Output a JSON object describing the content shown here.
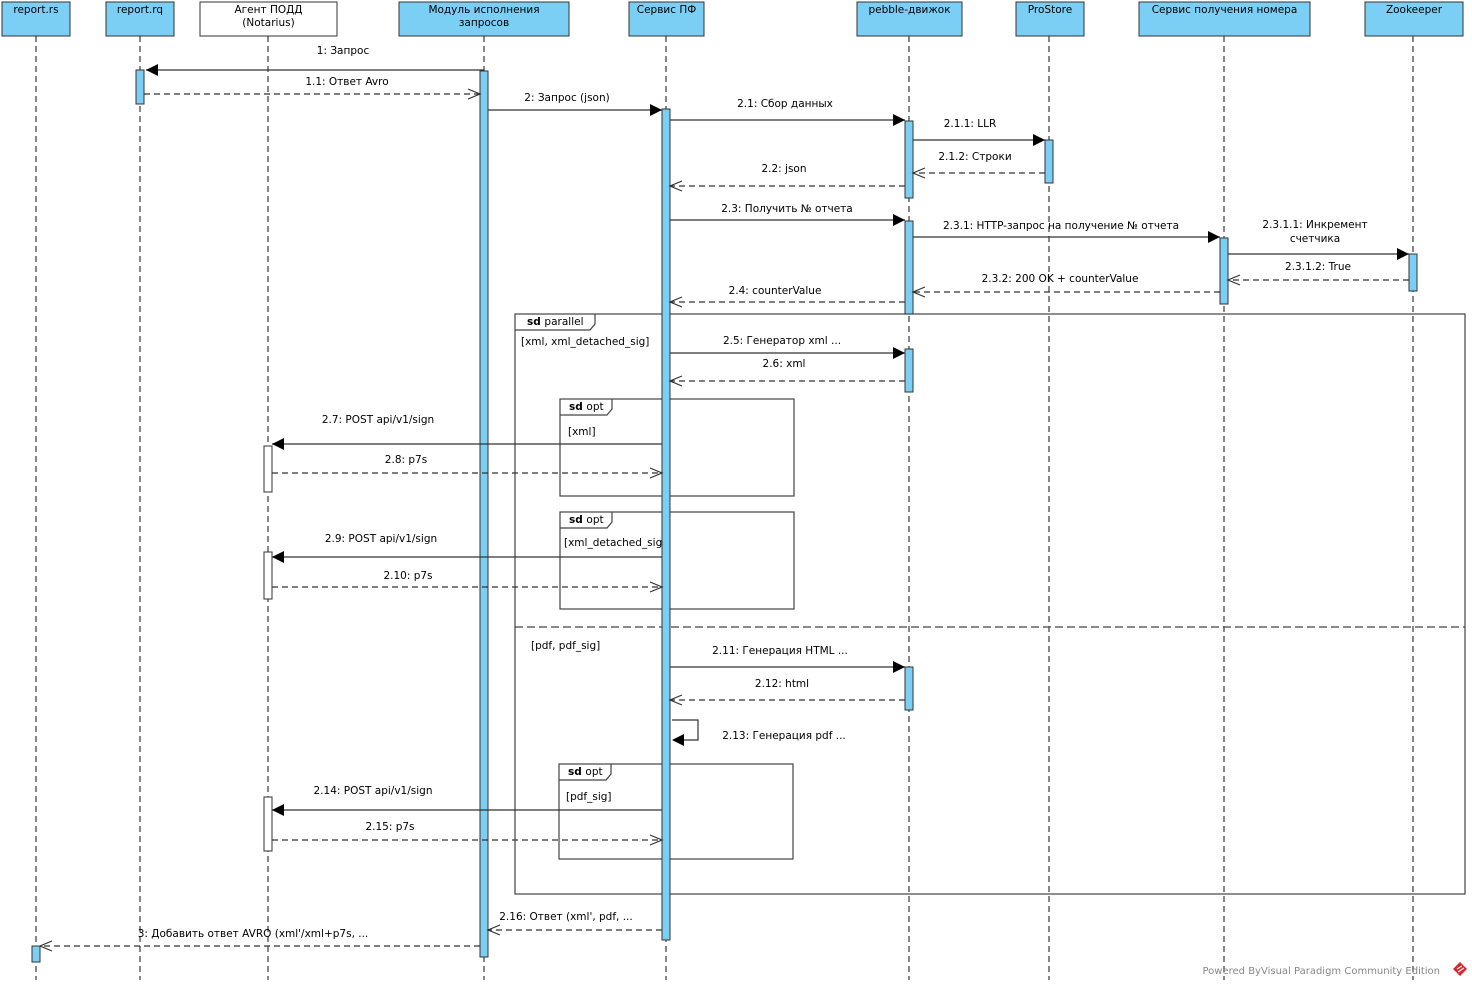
{
  "colors": {
    "participant_fill": "#7ccff4",
    "agent_fill": "#ffffff",
    "activation_fill": "#7ccff4",
    "line": "#333333",
    "watermark": "#888888",
    "logo": "#d9262e"
  },
  "participants": [
    {
      "id": "rs",
      "label": [
        "report.rs"
      ]
    },
    {
      "id": "rq",
      "label": [
        "report.rq"
      ]
    },
    {
      "id": "agent",
      "label": [
        "Агент ПОДД",
        "(Notarius)"
      ]
    },
    {
      "id": "module",
      "label": [
        "Модуль исполнения",
        "запросов"
      ]
    },
    {
      "id": "pf",
      "label": [
        "Сервис ПФ"
      ]
    },
    {
      "id": "pebble",
      "label": [
        "pebble-движок"
      ]
    },
    {
      "id": "prostore",
      "label": [
        "ProStore"
      ]
    },
    {
      "id": "counter",
      "label": [
        "Сервис получения номера"
      ]
    },
    {
      "id": "zoo",
      "label": [
        "Zookeeper"
      ]
    }
  ],
  "messages": [
    {
      "label": [
        "1: Запрос"
      ],
      "from": "module",
      "to": "rq",
      "kind": "sync"
    },
    {
      "label": [
        "1.1: Ответ Avro"
      ],
      "from": "rq",
      "to": "module",
      "kind": "reply"
    },
    {
      "label": [
        "2: Запрос (json)"
      ],
      "from": "module",
      "to": "pf",
      "kind": "sync"
    },
    {
      "label": [
        "2.1: Сбор данных"
      ],
      "from": "pf",
      "to": "pebble",
      "kind": "sync"
    },
    {
      "label": [
        "2.1.1: LLR"
      ],
      "from": "pebble",
      "to": "prostore",
      "kind": "sync"
    },
    {
      "label": [
        "2.1.2: Строки"
      ],
      "from": "prostore",
      "to": "pebble",
      "kind": "reply"
    },
    {
      "label": [
        "2.2: json"
      ],
      "from": "pebble",
      "to": "pf",
      "kind": "reply"
    },
    {
      "label": [
        "2.3: Получить № отчета"
      ],
      "from": "pf",
      "to": "pebble",
      "kind": "sync"
    },
    {
      "label": [
        "2.3.1: HTTP-запрос на получение № отчета"
      ],
      "from": "pebble",
      "to": "counter",
      "kind": "sync"
    },
    {
      "label": [
        "2.3.1.1: Инкремент",
        "счетчика"
      ],
      "from": "counter",
      "to": "zoo",
      "kind": "sync"
    },
    {
      "label": [
        "2.3.1.2: True"
      ],
      "from": "zoo",
      "to": "counter",
      "kind": "reply"
    },
    {
      "label": [
        "2.3.2: 200 OK + counterValue"
      ],
      "from": "counter",
      "to": "pebble",
      "kind": "reply"
    },
    {
      "label": [
        "2.4: counterValue"
      ],
      "from": "pebble",
      "to": "pf",
      "kind": "reply"
    },
    {
      "label": [
        "2.5: Генератор xml ..."
      ],
      "from": "pf",
      "to": "pebble",
      "kind": "sync"
    },
    {
      "label": [
        "2.6: xml"
      ],
      "from": "pebble",
      "to": "pf",
      "kind": "reply"
    },
    {
      "label": [
        "2.7:  POST api/v1/sign"
      ],
      "from": "pf",
      "to": "agent",
      "kind": "sync"
    },
    {
      "label": [
        "2.8: p7s"
      ],
      "from": "agent",
      "to": "pf",
      "kind": "reply"
    },
    {
      "label": [
        "2.9: POST api/v1/sign"
      ],
      "from": "pf",
      "to": "agent",
      "kind": "sync"
    },
    {
      "label": [
        "2.10: p7s"
      ],
      "from": "agent",
      "to": "pf",
      "kind": "reply"
    },
    {
      "label": [
        "2.11: Генерация HTML ..."
      ],
      "from": "pf",
      "to": "pebble",
      "kind": "sync"
    },
    {
      "label": [
        "2.12: html"
      ],
      "from": "pebble",
      "to": "pf",
      "kind": "reply"
    },
    {
      "label": [
        "2.13: Генерация pdf ..."
      ],
      "from": "pf",
      "to": "pf",
      "kind": "self"
    },
    {
      "label": [
        "2.14: POST api/v1/sign"
      ],
      "from": "pf",
      "to": "agent",
      "kind": "sync"
    },
    {
      "label": [
        "2.15: p7s"
      ],
      "from": "agent",
      "to": "pf",
      "kind": "reply"
    },
    {
      "label": [
        "2.16: Ответ (xml', pdf, ..."
      ],
      "from": "pf",
      "to": "module",
      "kind": "reply"
    },
    {
      "label": [
        "3: Добавить ответ AVRO (xml'/xml+p7s, ..."
      ],
      "from": "module",
      "to": "rs",
      "kind": "reply"
    }
  ],
  "fragments": [
    {
      "keyword": "sd",
      "name": "parallel",
      "guards": [
        "[xml, xml_detached_sig]",
        "[pdf, pdf_sig]"
      ]
    },
    {
      "keyword": "sd",
      "name": "opt",
      "guards": [
        "[xml]"
      ]
    },
    {
      "keyword": "sd",
      "name": "opt",
      "guards": [
        "[xml_detached_sig]"
      ]
    },
    {
      "keyword": "sd",
      "name": "opt",
      "guards": [
        "[pdf_sig]"
      ]
    }
  ],
  "watermark": "Powered ByVisual Paradigm Community Edition"
}
